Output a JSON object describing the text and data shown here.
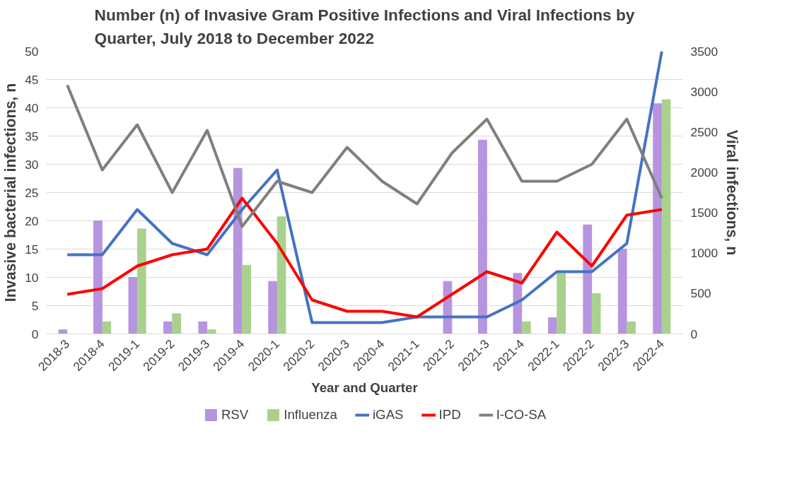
{
  "chart_data": {
    "type": "bar",
    "title": "Number (n) of Invasive Gram Positive Infections and Viral Infections by Quarter, July 2018 to December 2022",
    "xlabel": "Year and Quarter",
    "ylabel": "Invasive bacterial infections, n",
    "y2label": "Viral infections, n",
    "categories": [
      "2018-3",
      "2018-4",
      "2019-1",
      "2019-2",
      "2019-3",
      "2019-4",
      "2020-1",
      "2020-2",
      "2020-3",
      "2020-4",
      "2021-1",
      "2021-2",
      "2021-3",
      "2021-4",
      "2022-1",
      "2022-2",
      "2022-3",
      "2022-4"
    ],
    "series": [
      {
        "name": "RSV",
        "axis": "y2",
        "color": "#b694e0",
        "values": [
          50,
          1400,
          700,
          150,
          150,
          2050,
          650,
          0,
          0,
          0,
          0,
          650,
          2400,
          750,
          200,
          1350,
          1050,
          2850
        ]
      },
      {
        "name": "Influenza",
        "axis": "y2",
        "color": "#a9d18e",
        "values": [
          0,
          150,
          1300,
          250,
          50,
          850,
          1450,
          0,
          0,
          0,
          0,
          0,
          0,
          150,
          750,
          500,
          150,
          2900
        ]
      },
      {
        "name": "iGAS",
        "type": "line",
        "color": "#4472c4",
        "values": [
          14,
          14,
          22,
          16,
          14,
          22,
          29,
          2,
          2,
          2,
          3,
          3,
          3,
          6,
          11,
          11,
          16,
          50
        ]
      },
      {
        "name": "IPD",
        "type": "line",
        "color": "#ff0000",
        "values": [
          7,
          8,
          12,
          14,
          15,
          24,
          16,
          6,
          4,
          4,
          3,
          7,
          11,
          9,
          18,
          12,
          21,
          22
        ]
      },
      {
        "name": "I-CO-SA",
        "type": "line",
        "color": "#7f7f7f",
        "values": [
          44,
          29,
          37,
          25,
          36,
          19,
          27,
          25,
          33,
          27,
          23,
          32,
          38,
          27,
          27,
          30,
          38,
          24
        ]
      }
    ],
    "ylim": [
      0,
      50
    ],
    "yticks": [
      0,
      5,
      10,
      15,
      20,
      25,
      30,
      35,
      40,
      45,
      50
    ],
    "y2lim": [
      0,
      3500
    ],
    "y2ticks": [
      0,
      500,
      1000,
      1500,
      2000,
      2500,
      3000,
      3500
    ],
    "grid": "y",
    "legend": "bottom"
  }
}
